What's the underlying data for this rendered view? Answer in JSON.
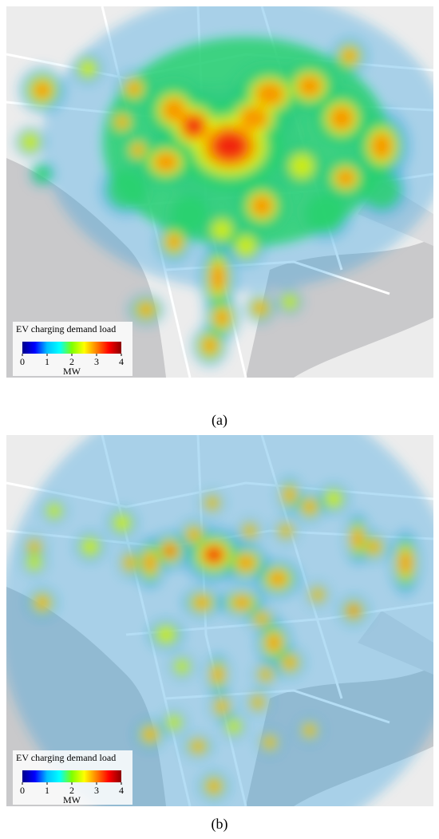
{
  "panels": [
    {
      "label": "(a)",
      "legend": {
        "title": "EV charging demand load",
        "clim": [
          0,
          4
        ],
        "ticks": [
          0,
          1,
          2,
          3,
          4
        ],
        "unit": "MW"
      }
    },
    {
      "label": "(b)",
      "legend": {
        "title": "EV charging demand load",
        "clim": [
          0,
          4
        ],
        "ticks": [
          0,
          1,
          2,
          3,
          4
        ],
        "unit": "MW"
      }
    }
  ]
}
